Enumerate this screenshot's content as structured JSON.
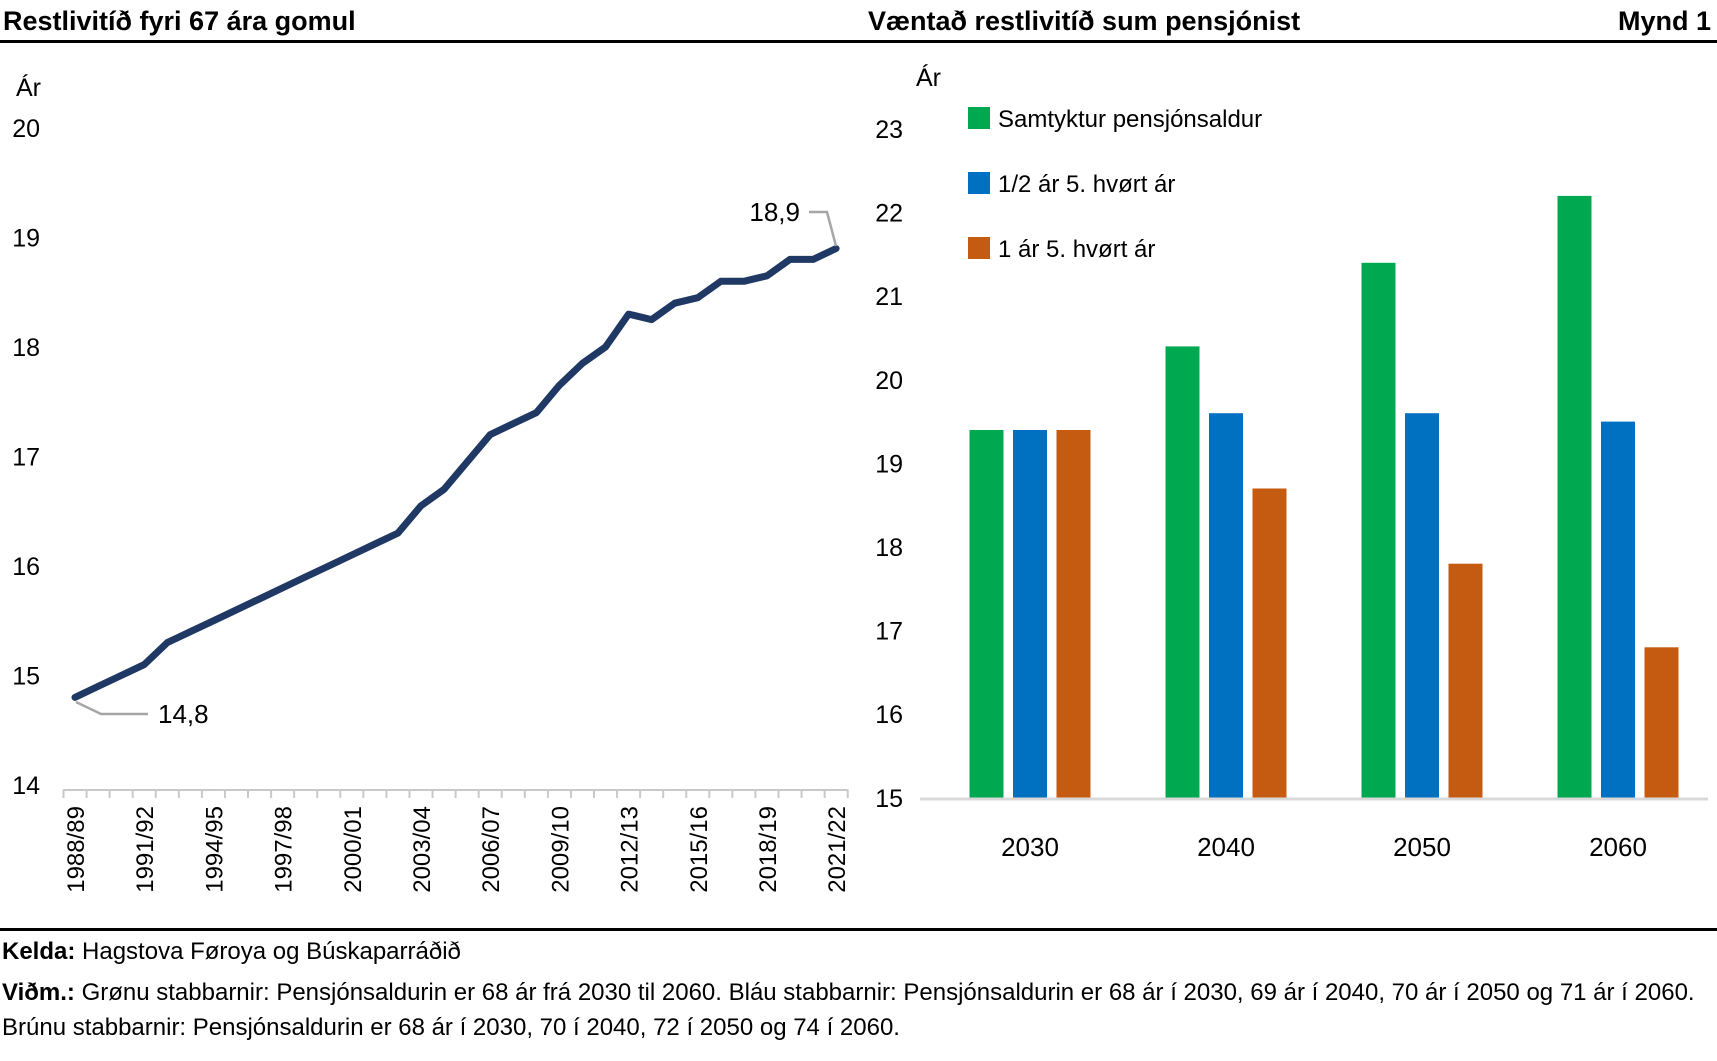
{
  "header": {
    "left_title": "Restlivitíð fyri 67 ára gomul",
    "right_title": "Væntað restlivitíð sum pensjónist",
    "figure_label": "Mynd 1"
  },
  "footer": {
    "kelda_label": "Kelda:",
    "kelda_text": " Hagstova Føroya og Búskaparráðið",
    "vidm_label": "Viðm.:",
    "vidm_text": " Grønu stabbarnir: Pensjónsaldurin er 68 ár frá 2030 til 2060. Bláu stabbarnir: Pensjónsaldurin er 68 ár í 2030, 69 ár í 2040, 70 ár í 2050 og 71 ár í 2060. Brúnu stabbarnir: Pensjónsaldurin er 68 ár í 2030, 70 í 2040, 72 í 2050 og 74 í 2060."
  },
  "colors": {
    "line": "#1F3864",
    "green": "#00A950",
    "blue": "#0070C0",
    "orange": "#C55A11",
    "leader_gray": "#A6A6A6",
    "axis_gray": "#C9C9C9",
    "baseline_gray": "#D9D9D9",
    "text": "#000000"
  },
  "chart_data": [
    {
      "type": "line",
      "title": "Restlivitíð fyri 67 ára gomul",
      "ylabel": "Ár",
      "xlabel": "",
      "ylim": [
        14,
        20
      ],
      "yticks": [
        20,
        19,
        18,
        17,
        16,
        15,
        14
      ],
      "grid": false,
      "line_color": "#1F3864",
      "x": [
        "1988/89",
        "1989/90",
        "1990/91",
        "1991/92",
        "1992/93",
        "1993/94",
        "1994/95",
        "1995/96",
        "1996/97",
        "1997/98",
        "1998/99",
        "1999/00",
        "2000/01",
        "2001/02",
        "2002/03",
        "2003/04",
        "2004/05",
        "2005/06",
        "2006/07",
        "2007/08",
        "2008/09",
        "2009/10",
        "2010/11",
        "2011/12",
        "2012/13",
        "2013/14",
        "2014/15",
        "2015/16",
        "2016/17",
        "2017/18",
        "2018/19",
        "2019/20",
        "2020/21",
        "2021/22"
      ],
      "xtick_labels_shown": [
        "1988/89",
        "1991/92",
        "1994/95",
        "1997/98",
        "2000/01",
        "2003/04",
        "2006/07",
        "2009/10",
        "2012/13",
        "2015/16",
        "2018/19",
        "2021/22"
      ],
      "values": [
        14.8,
        14.9,
        15.0,
        15.1,
        15.3,
        15.4,
        15.5,
        15.6,
        15.7,
        15.8,
        15.9,
        16.0,
        16.1,
        16.2,
        16.3,
        16.55,
        16.7,
        16.95,
        17.2,
        17.3,
        17.4,
        17.65,
        17.85,
        18.0,
        18.3,
        18.25,
        18.4,
        18.45,
        18.6,
        18.6,
        18.65,
        18.8,
        18.8,
        18.9
      ],
      "annotations": [
        {
          "text": "14,8",
          "point_index": 0
        },
        {
          "text": "18,9",
          "point_index": 33
        }
      ]
    },
    {
      "type": "bar",
      "title": "Væntað restlivitíð sum pensjónist",
      "ylabel": "Ár",
      "xlabel": "",
      "ylim": [
        15,
        23
      ],
      "yticks": [
        23,
        22,
        21,
        20,
        19,
        18,
        17,
        16,
        15
      ],
      "grid": false,
      "legend_position": "top-left",
      "categories": [
        "2030",
        "2040",
        "2050",
        "2060"
      ],
      "series": [
        {
          "name": "Samtyktur pensjónsaldur",
          "color": "#00A950",
          "values": [
            19.4,
            20.4,
            21.4,
            22.2
          ]
        },
        {
          "name": "1/2 ár 5. hvørt ár",
          "color": "#0070C0",
          "values": [
            19.4,
            19.6,
            19.6,
            19.5
          ]
        },
        {
          "name": "1 ár 5. hvørt ár",
          "color": "#C55A11",
          "values": [
            19.4,
            18.7,
            17.8,
            16.8
          ]
        }
      ]
    }
  ]
}
